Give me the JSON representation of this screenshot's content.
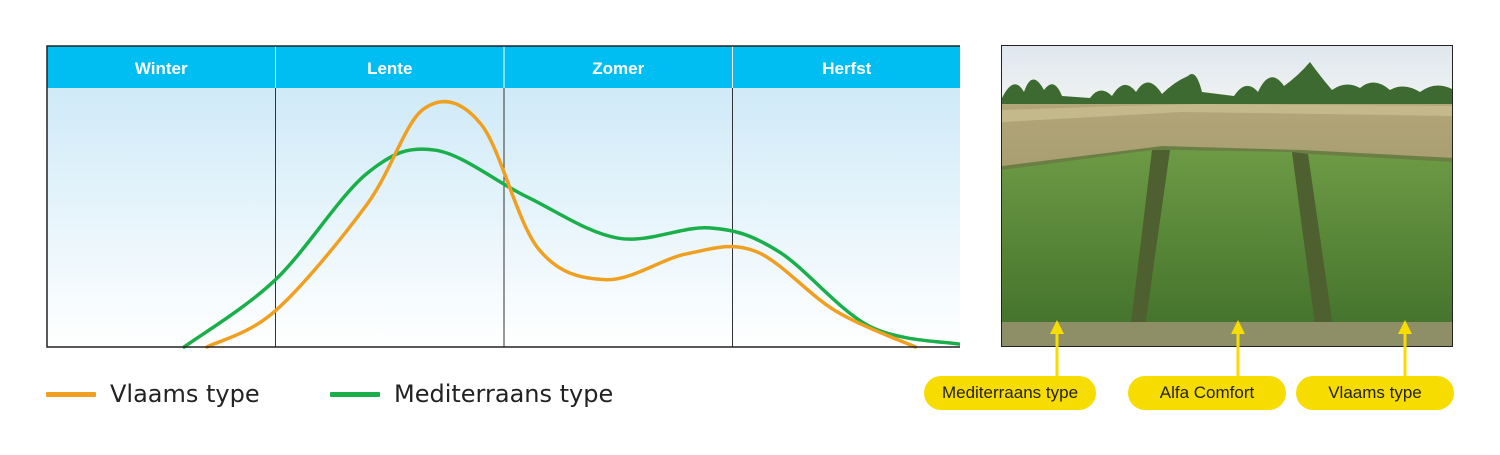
{
  "chart_data": {
    "type": "line",
    "seasons": [
      "Winter",
      "Lente",
      "Zomer",
      "Herfst"
    ],
    "x_domain": [
      0,
      4
    ],
    "y_domain": [
      0,
      100
    ],
    "series": [
      {
        "name": "Vlaams type",
        "color": "#f0a020",
        "points": [
          [
            0.7,
            0
          ],
          [
            1.0,
            14
          ],
          [
            1.4,
            55
          ],
          [
            1.65,
            92
          ],
          [
            1.9,
            86
          ],
          [
            2.15,
            38
          ],
          [
            2.45,
            26
          ],
          [
            2.8,
            36
          ],
          [
            3.1,
            37
          ],
          [
            3.45,
            14
          ],
          [
            3.8,
            0
          ]
        ]
      },
      {
        "name": "Mediterraans type",
        "color": "#1aaf4a",
        "points": [
          [
            0.6,
            0
          ],
          [
            1.0,
            26
          ],
          [
            1.4,
            67
          ],
          [
            1.7,
            76
          ],
          [
            2.1,
            58
          ],
          [
            2.5,
            42
          ],
          [
            2.9,
            46
          ],
          [
            3.2,
            37
          ],
          [
            3.6,
            8
          ],
          [
            4.0,
            1
          ]
        ]
      }
    ]
  },
  "legend": [
    {
      "label": "Vlaams type",
      "color": "#f0a020"
    },
    {
      "label": "Mediterraans type",
      "color": "#1aaf4a"
    }
  ],
  "photo": {
    "labels": [
      "Mediterraans type",
      "Alfa Comfort",
      "Vlaams type"
    ],
    "pill_color": "#f7dc00",
    "arrow_color": "#f7dc00"
  },
  "colors": {
    "header": "#00bdf2",
    "grad_top": "#cfeaf8",
    "grad_bottom": "#ffffff"
  }
}
